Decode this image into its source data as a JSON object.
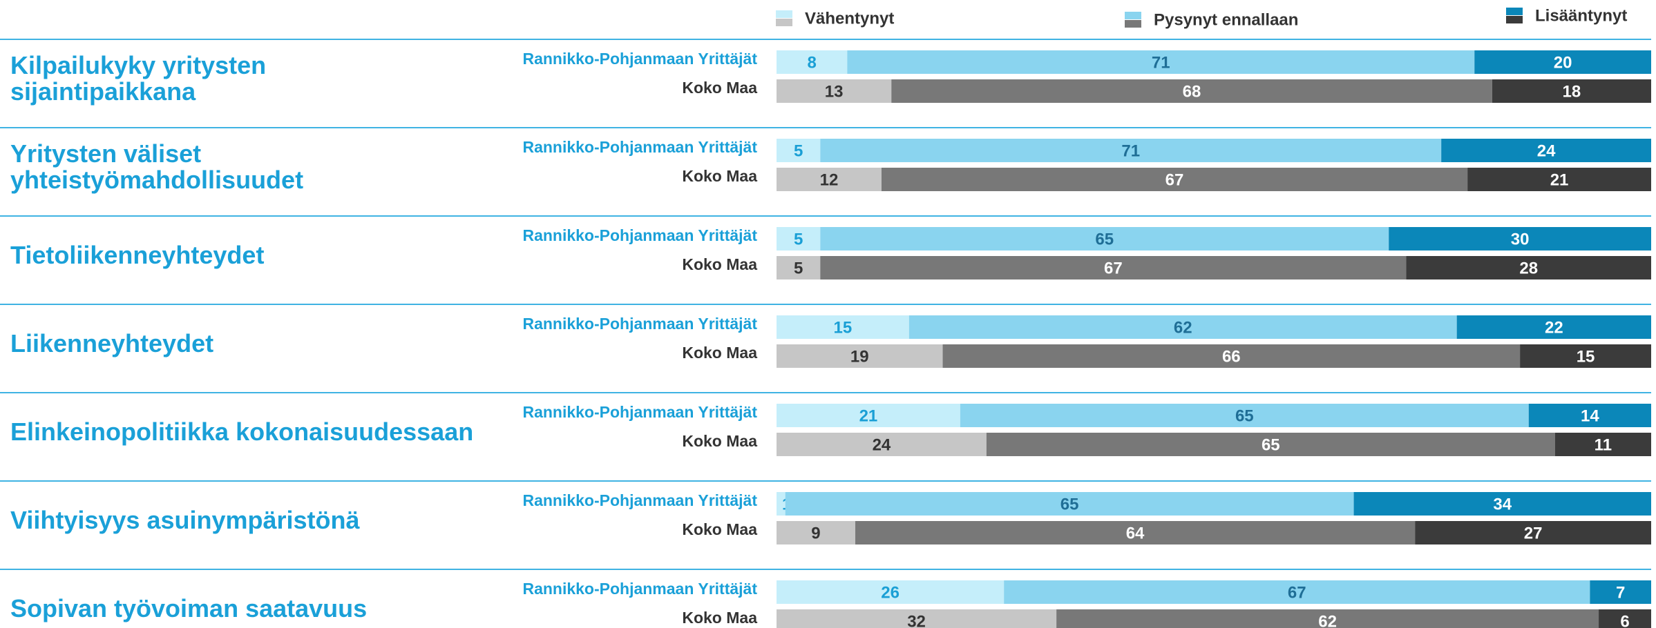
{
  "chart_data": {
    "type": "stacked_bar_100",
    "categories": [
      "Kilpailukyky yritysten\nsijaintipaikkana",
      "Yritysten väliset\nyhteistyömahdollisuudet",
      "Tietoliikenneyhteydet",
      "Liikenneyhteydet",
      "Elinkeinopolitiikka kokonaisuudessaan",
      "Viihtyisyys asuinympäristönä",
      "Sopivan työvoiman saatavuus"
    ],
    "groups": [
      {
        "name": "Rannikko-Pohjanmaan Yrittäjät",
        "label_color": "#1aa0d8",
        "colors": [
          "#c5eefa",
          "#8ad4ef",
          "#0b87b9"
        ],
        "text_colors": [
          "#1a9fd5",
          "#1f6e96",
          "#ffffff"
        ]
      },
      {
        "name": "Koko Maa",
        "label_color": "#333333",
        "colors": [
          "#c6c6c6",
          "#787878",
          "#3b3b3b"
        ],
        "text_colors": [
          "#333333",
          "#ffffff",
          "#ffffff"
        ]
      }
    ],
    "series": [
      {
        "name": "Vähentynyt",
        "values": [
          [
            8,
            13
          ],
          [
            5,
            12
          ],
          [
            5,
            5
          ],
          [
            15,
            19
          ],
          [
            21,
            24
          ],
          [
            1,
            9
          ],
          [
            26,
            32
          ]
        ]
      },
      {
        "name": "Pysynyt ennallaan",
        "values": [
          [
            71,
            68
          ],
          [
            71,
            67
          ],
          [
            65,
            67
          ],
          [
            62,
            66
          ],
          [
            65,
            65
          ],
          [
            65,
            64
          ],
          [
            67,
            62
          ]
        ]
      },
      {
        "name": "Lisääntynyt",
        "values": [
          [
            20,
            18
          ],
          [
            24,
            21
          ],
          [
            30,
            28
          ],
          [
            22,
            15
          ],
          [
            14,
            11
          ],
          [
            34,
            27
          ],
          [
            7,
            6
          ]
        ]
      }
    ]
  }
}
